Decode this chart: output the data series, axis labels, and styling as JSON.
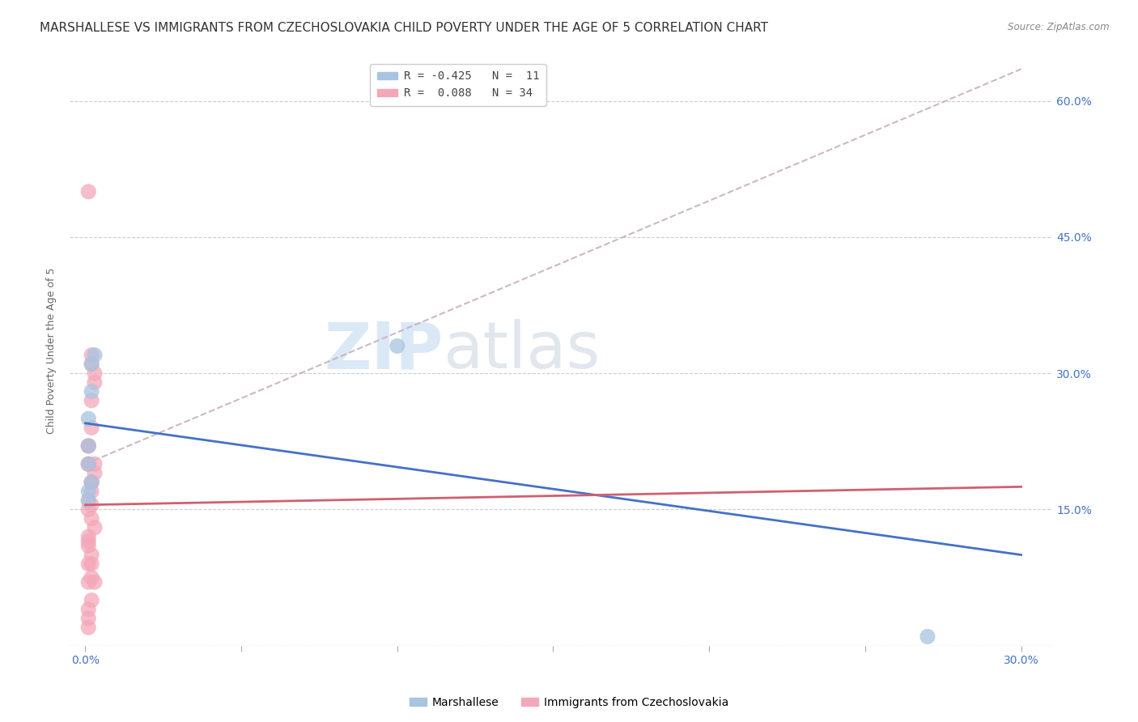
{
  "title": "MARSHALLESE VS IMMIGRANTS FROM CZECHOSLOVAKIA CHILD POVERTY UNDER THE AGE OF 5 CORRELATION CHART",
  "source": "Source: ZipAtlas.com",
  "ylabel": "Child Poverty Under the Age of 5",
  "watermark": "ZIPatlas",
  "series": [
    {
      "name": "Marshallese",
      "color": "#a8c4e0",
      "R": -0.425,
      "N": 11,
      "points_x": [
        0.001,
        0.002,
        0.001,
        0.003,
        0.002,
        0.001,
        0.002,
        0.001,
        0.001,
        0.1,
        0.27
      ],
      "points_y": [
        0.25,
        0.31,
        0.22,
        0.32,
        0.28,
        0.2,
        0.18,
        0.17,
        0.16,
        0.33,
        0.01
      ],
      "line_color": "#4472c4",
      "trend_x": [
        0.0,
        0.3
      ],
      "trend_y": [
        0.245,
        0.1
      ]
    },
    {
      "name": "Immigrants from Czechoslovakia",
      "color": "#f4a7b9",
      "R": 0.088,
      "N": 34,
      "points_x": [
        0.001,
        0.002,
        0.002,
        0.003,
        0.003,
        0.002,
        0.001,
        0.002,
        0.001,
        0.001,
        0.001,
        0.002,
        0.002,
        0.003,
        0.003,
        0.002,
        0.001,
        0.001,
        0.002,
        0.002,
        0.003,
        0.001,
        0.001,
        0.001,
        0.002,
        0.002,
        0.001,
        0.001,
        0.002,
        0.003,
        0.002,
        0.001,
        0.001,
        0.001
      ],
      "points_y": [
        0.5,
        0.32,
        0.31,
        0.3,
        0.29,
        0.27,
        0.22,
        0.24,
        0.22,
        0.2,
        0.2,
        0.18,
        0.18,
        0.19,
        0.2,
        0.17,
        0.16,
        0.15,
        0.155,
        0.14,
        0.13,
        0.12,
        0.11,
        0.115,
        0.1,
        0.09,
        0.09,
        0.07,
        0.075,
        0.07,
        0.05,
        0.04,
        0.03,
        0.02
      ],
      "line_color": "#d06070",
      "trend_x": [
        0.0,
        0.3
      ],
      "trend_y": [
        0.155,
        0.175
      ]
    }
  ],
  "dashed_trend": {
    "color": "#c8b0c0",
    "x": [
      0.0,
      0.3
    ],
    "y": [
      0.2,
      0.635
    ]
  },
  "xlim": [
    -0.005,
    0.31
  ],
  "ylim": [
    0.0,
    0.65
  ],
  "xticks": [
    0.0,
    0.05,
    0.1,
    0.15,
    0.2,
    0.25,
    0.3
  ],
  "xtick_labels": [
    "0.0%",
    "",
    "",
    "",
    "",
    "",
    "30.0%"
  ],
  "ytick_positions": [
    0.0,
    0.15,
    0.3,
    0.45,
    0.6
  ],
  "right_ytick_labels": [
    "",
    "15.0%",
    "30.0%",
    "45.0%",
    "60.0%"
  ],
  "grid_color": "#cccccc",
  "background_color": "#ffffff",
  "title_fontsize": 11,
  "axis_fontsize": 9,
  "tick_fontsize": 10,
  "tick_color": "#4472c4",
  "legend_fontsize": 10
}
